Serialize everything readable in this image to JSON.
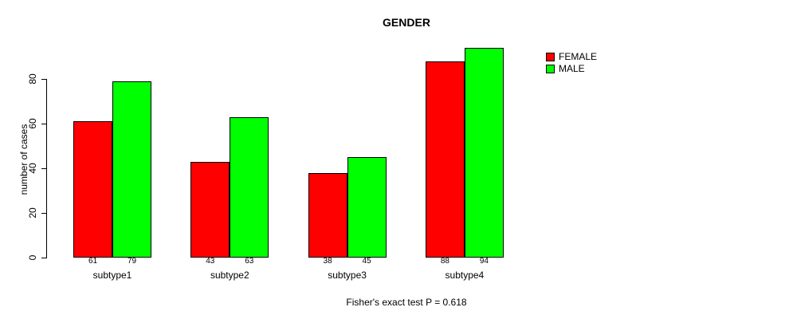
{
  "chart_data": {
    "type": "bar",
    "title": "GENDER",
    "ylabel": "number of cases",
    "xlabel": "",
    "categories": [
      "subtype1",
      "subtype2",
      "subtype3",
      "subtype4"
    ],
    "series": [
      {
        "name": "FEMALE",
        "color": "#FF0000",
        "values": [
          61,
          43,
          38,
          88
        ]
      },
      {
        "name": "MALE",
        "color": "#00FF00",
        "values": [
          79,
          63,
          45,
          94
        ]
      }
    ],
    "yticks": [
      0,
      20,
      40,
      60,
      80
    ],
    "ylim": [
      0,
      96
    ],
    "grid": false,
    "legend_position": "top-right",
    "show_value_labels": true,
    "caption": "Fisher's exact test P = 0.618"
  }
}
